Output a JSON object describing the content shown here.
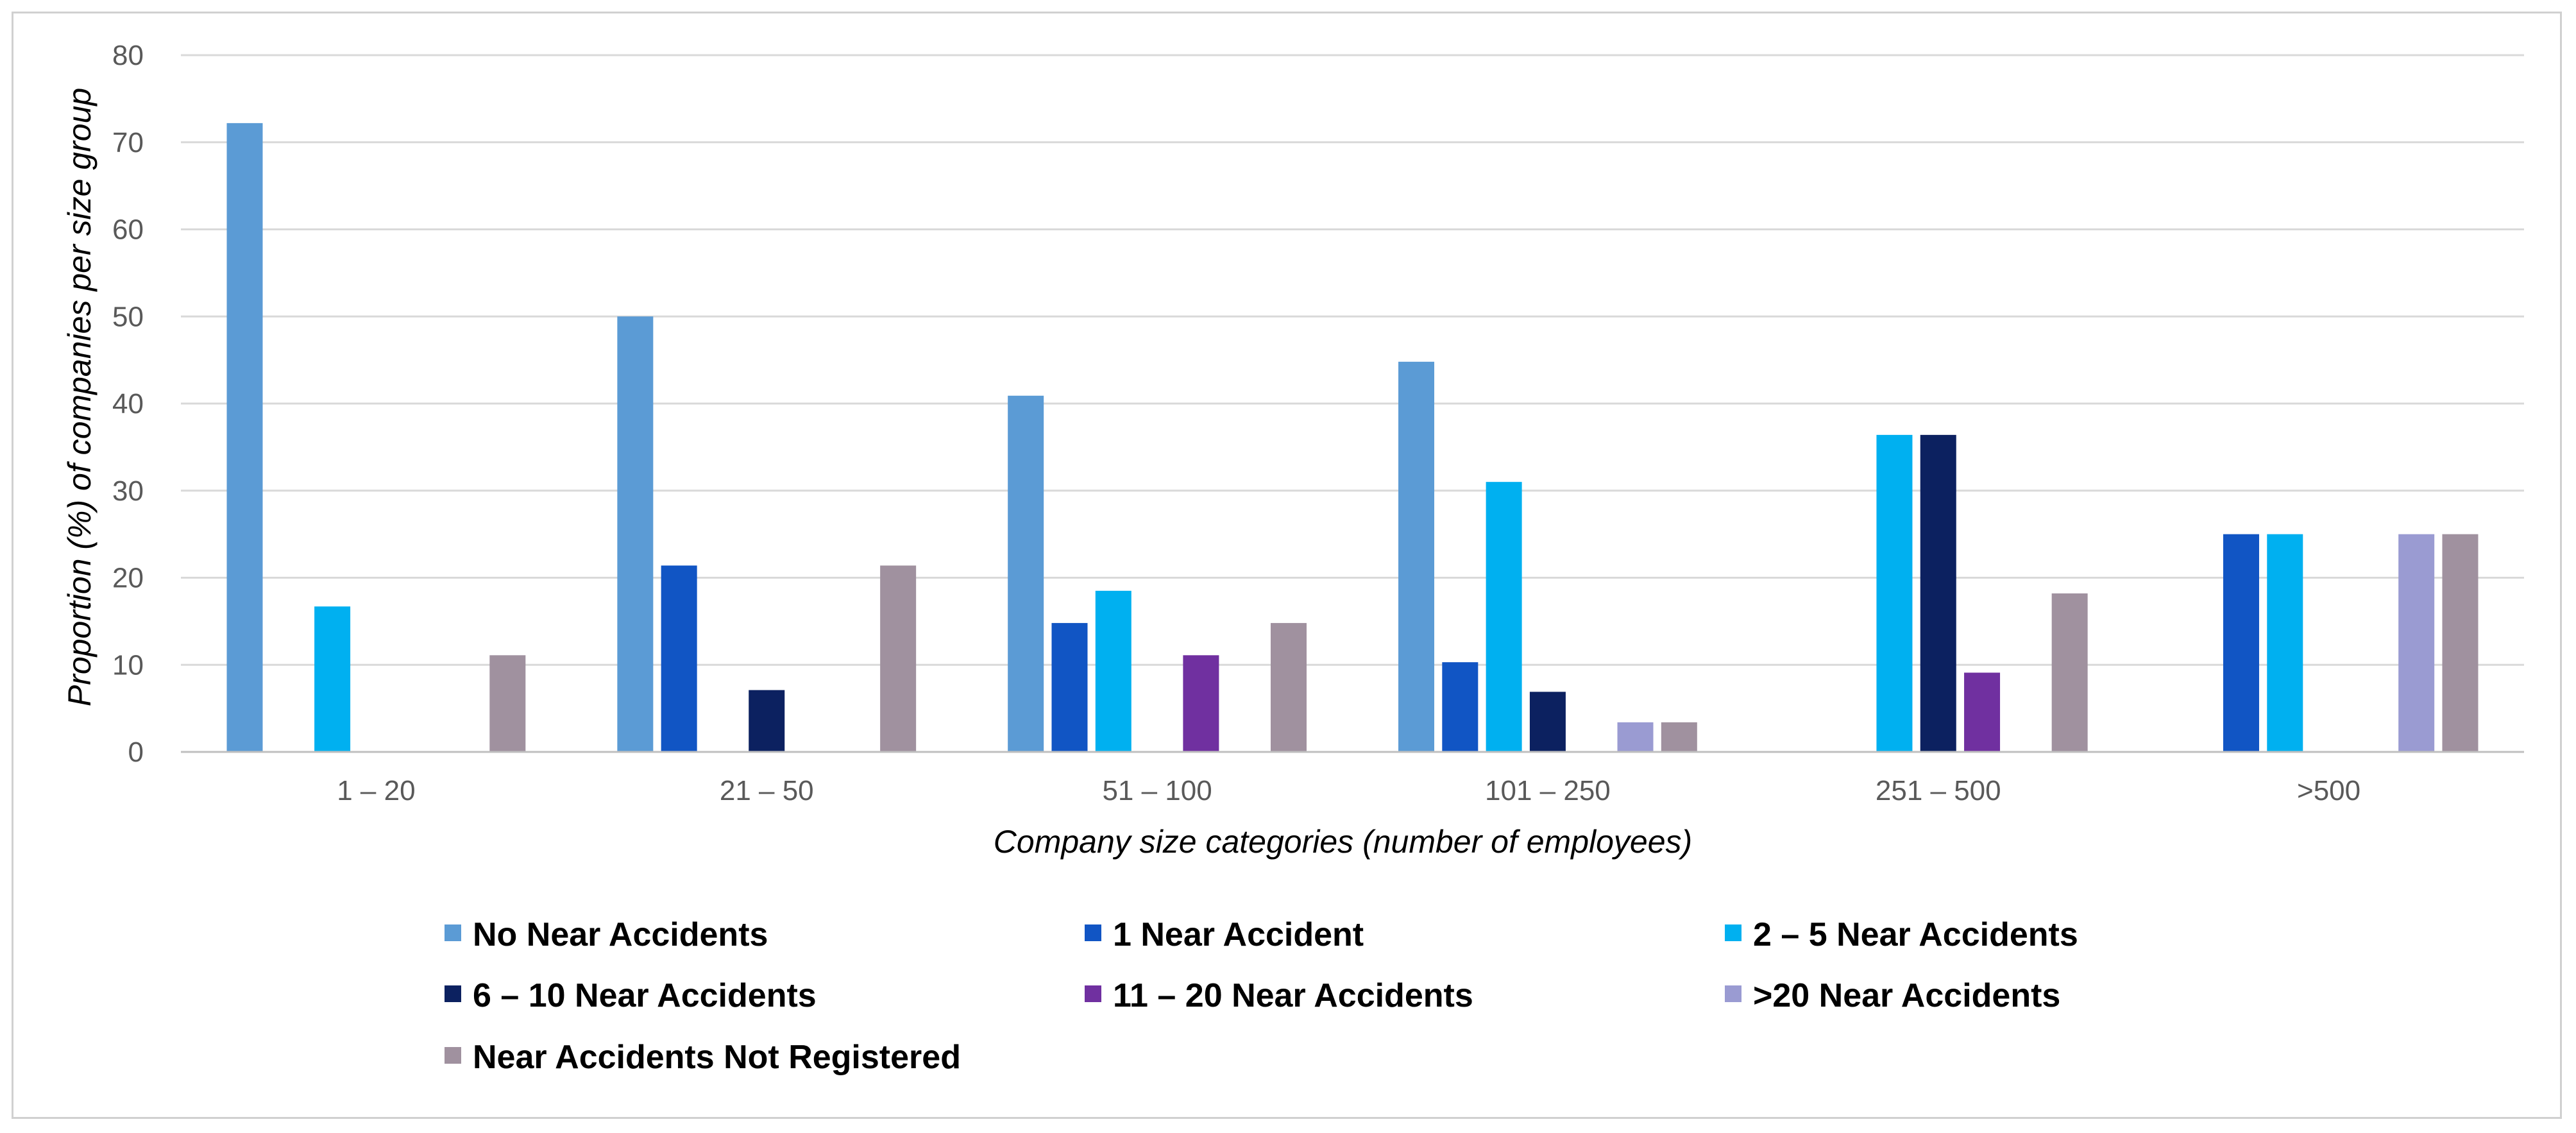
{
  "chart_data": {
    "type": "bar",
    "title": "",
    "xlabel": "Company size categories (number of employees)",
    "ylabel": "Proportion (%) of companies per size group",
    "ylim": [
      0,
      80
    ],
    "yticks": [
      0,
      10,
      20,
      30,
      40,
      50,
      60,
      70,
      80
    ],
    "grid": true,
    "legend_position": "bottom",
    "categories": [
      "1 – 20",
      "21 – 50",
      "51 – 100",
      "101 – 250",
      "251 – 500",
      ">500"
    ],
    "series": [
      {
        "name": "No Near Accidents",
        "color": "#5B9BD5",
        "values": [
          72.2,
          50.0,
          40.9,
          44.8,
          0,
          0
        ]
      },
      {
        "name": "1 Near Accident",
        "color": "#1155C4",
        "values": [
          0,
          21.4,
          14.8,
          10.3,
          0,
          25.0
        ]
      },
      {
        "name": "2 – 5 Near Accidents",
        "color": "#00B0F0",
        "values": [
          16.7,
          0,
          18.5,
          31.0,
          36.4,
          25.0
        ]
      },
      {
        "name": "6 – 10 Near Accidents",
        "color": "#0C2160",
        "values": [
          0,
          7.1,
          0,
          6.9,
          36.4,
          0
        ]
      },
      {
        "name": "11 – 20 Near Accidents",
        "color": "#7030A0",
        "values": [
          0,
          0,
          11.1,
          0,
          9.1,
          0
        ]
      },
      {
        "name": ">20 Near Accidents",
        "color": "#9A9BD2",
        "values": [
          0,
          0,
          0,
          3.4,
          0,
          25.0
        ]
      },
      {
        "name": "Near Accidents Not Registered",
        "color": "#A0919F",
        "values": [
          11.1,
          21.4,
          14.8,
          3.4,
          18.2,
          25.0
        ]
      }
    ]
  }
}
